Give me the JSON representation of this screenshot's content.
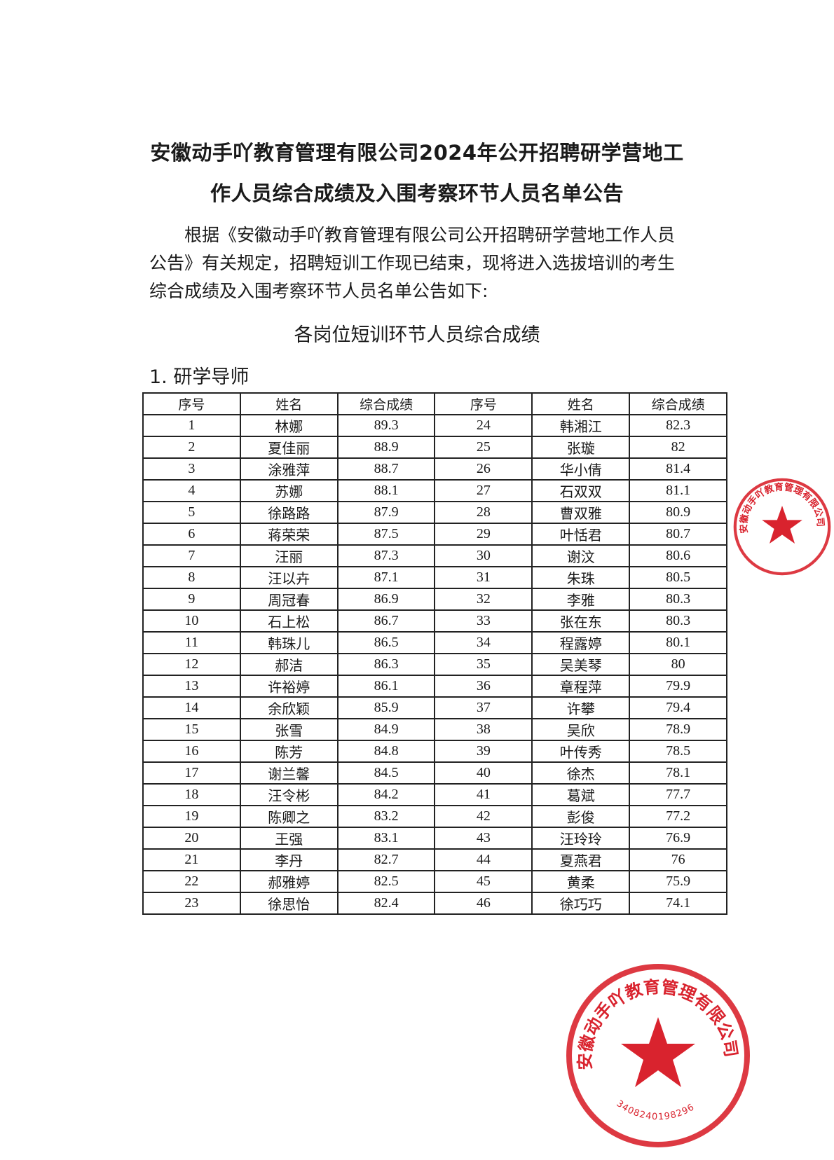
{
  "document": {
    "title_line1": "安徽动手吖教育管理有限公司2024年公开招聘研学营地工",
    "title_line2": "作人员综合成绩及入围考察环节人员名单公告",
    "body_line1": "根据《安徽动手吖教育管理有限公司公开招聘研学营地工作人员",
    "body_line2": "公告》有关规定，招聘短训工作现已结束，现将进入选拔培训的考生",
    "body_line3": "综合成绩及入围考察环节人员名单公告如下:",
    "subheading": "各岗位短训环节人员综合成绩",
    "section_title": "1. 研学导师"
  },
  "table": {
    "headers": [
      "序号",
      "姓名",
      "综合成绩",
      "序号",
      "姓名",
      "综合成绩"
    ],
    "left": [
      [
        "1",
        "林娜",
        "89.3"
      ],
      [
        "2",
        "夏佳丽",
        "88.9"
      ],
      [
        "3",
        "涂雅萍",
        "88.7"
      ],
      [
        "4",
        "苏娜",
        "88.1"
      ],
      [
        "5",
        "徐路路",
        "87.9"
      ],
      [
        "6",
        "蒋荣荣",
        "87.5"
      ],
      [
        "7",
        "汪丽",
        "87.3"
      ],
      [
        "8",
        "汪以卉",
        "87.1"
      ],
      [
        "9",
        "周冠春",
        "86.9"
      ],
      [
        "10",
        "石上松",
        "86.7"
      ],
      [
        "11",
        "韩珠儿",
        "86.5"
      ],
      [
        "12",
        "郝洁",
        "86.3"
      ],
      [
        "13",
        "许裕婷",
        "86.1"
      ],
      [
        "14",
        "余欣颖",
        "85.9"
      ],
      [
        "15",
        "张雪",
        "84.9"
      ],
      [
        "16",
        "陈芳",
        "84.8"
      ],
      [
        "17",
        "谢兰馨",
        "84.5"
      ],
      [
        "18",
        "汪令彬",
        "84.2"
      ],
      [
        "19",
        "陈卿之",
        "83.2"
      ],
      [
        "20",
        "王强",
        "83.1"
      ],
      [
        "21",
        "李丹",
        "82.7"
      ],
      [
        "22",
        "郝雅婷",
        "82.5"
      ],
      [
        "23",
        "徐思怡",
        "82.4"
      ]
    ],
    "right": [
      [
        "24",
        "韩湘江",
        "82.3"
      ],
      [
        "25",
        "张璇",
        "82"
      ],
      [
        "26",
        "华小倩",
        "81.4"
      ],
      [
        "27",
        "石双双",
        "81.1"
      ],
      [
        "28",
        "曹双雅",
        "80.9"
      ],
      [
        "29",
        "叶恬君",
        "80.7"
      ],
      [
        "30",
        "谢汶",
        "80.6"
      ],
      [
        "31",
        "朱珠",
        "80.5"
      ],
      [
        "32",
        "李雅",
        "80.3"
      ],
      [
        "33",
        "张在东",
        "80.3"
      ],
      [
        "34",
        "程露婷",
        "80.1"
      ],
      [
        "35",
        "吴美琴",
        "80"
      ],
      [
        "36",
        "章程萍",
        "79.9"
      ],
      [
        "37",
        "许攀",
        "79.4"
      ],
      [
        "38",
        "吴欣",
        "78.9"
      ],
      [
        "39",
        "叶传秀",
        "78.5"
      ],
      [
        "40",
        "徐杰",
        "78.1"
      ],
      [
        "41",
        "葛斌",
        "77.7"
      ],
      [
        "42",
        "彭俊",
        "77.2"
      ],
      [
        "43",
        "汪玲玲",
        "76.9"
      ],
      [
        "44",
        "夏燕君",
        "76"
      ],
      [
        "45",
        "黄柔",
        "75.9"
      ],
      [
        "46",
        "徐巧巧",
        "74.1"
      ]
    ]
  },
  "seal": {
    "text": "安徽动手吖教育管理有限公司",
    "code": "3408240198296",
    "color": "#d9232e"
  }
}
